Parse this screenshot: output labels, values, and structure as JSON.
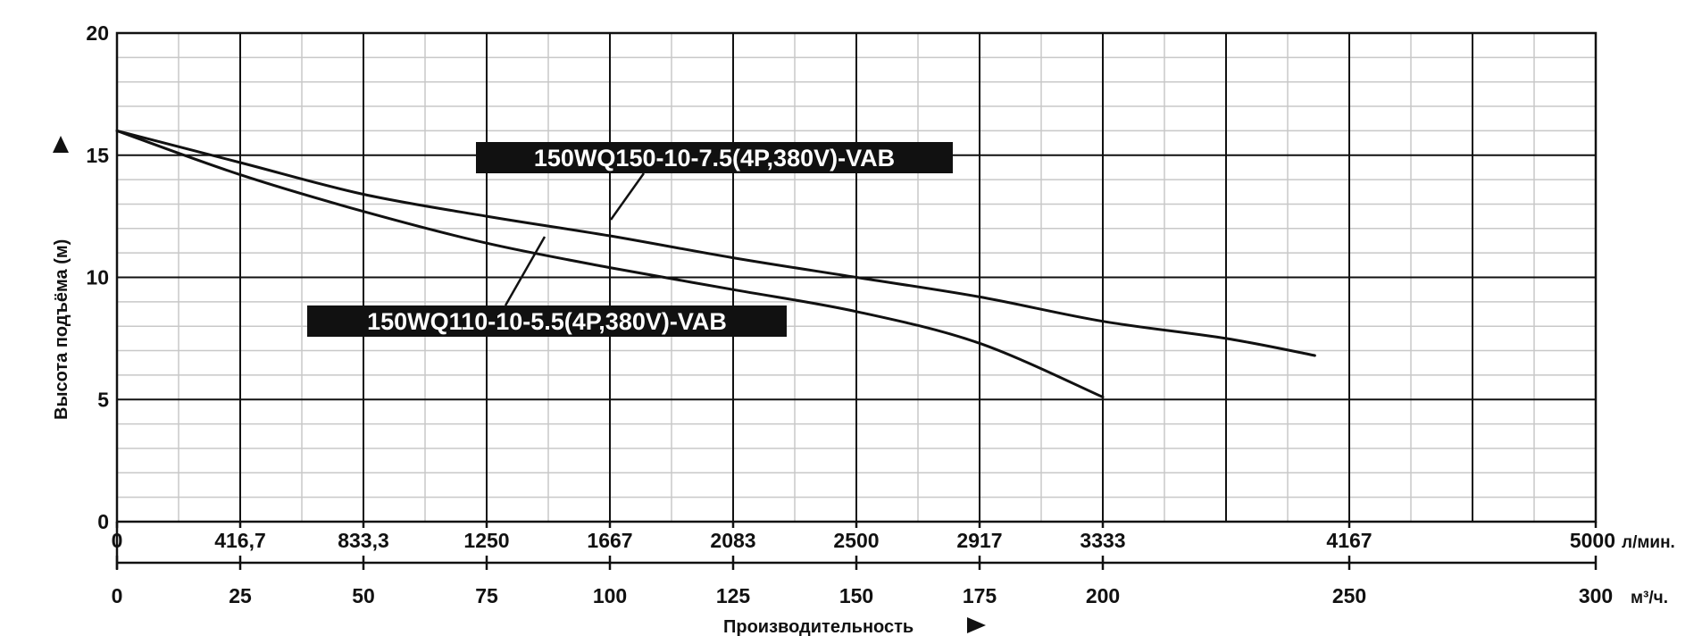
{
  "chart_data": {
    "type": "line",
    "title": "",
    "xlabel": "Производительность",
    "ylabel": "Высота подъёма (м)",
    "xlim": [
      0,
      300
    ],
    "ylim": [
      0,
      20
    ],
    "x_ticks_m3h": [
      "0",
      "25",
      "50",
      "75",
      "100",
      "125",
      "150",
      "175",
      "200",
      "250",
      "300"
    ],
    "x_ticks_lmin": [
      "0",
      "416,7",
      "833,3",
      "1250",
      "1667",
      "2083",
      "2500",
      "2917",
      "3333",
      "4167",
      "5000"
    ],
    "y_ticks": [
      "0",
      "5",
      "10",
      "15",
      "20"
    ],
    "unit_lmin": "л/мин.",
    "unit_m3h": "м³/ч.",
    "grid": true,
    "legend": "inline labels",
    "series": [
      {
        "name": "150WQ150-10-7.5(4P,380V)-VAB",
        "x": [
          0,
          25,
          50,
          75,
          100,
          125,
          150,
          175,
          200,
          225,
          243
        ],
        "y": [
          16,
          14.7,
          13.4,
          12.5,
          11.7,
          10.8,
          10.0,
          9.2,
          8.2,
          7.5,
          6.8
        ]
      },
      {
        "name": "150WQ110-10-5.5(4P,380V)-VAB",
        "x": [
          0,
          25,
          50,
          75,
          100,
          125,
          150,
          175,
          200
        ],
        "y": [
          16,
          14.2,
          12.7,
          11.4,
          10.4,
          9.5,
          8.6,
          7.3,
          5.1
        ]
      }
    ],
    "colors": {
      "line": "#111111",
      "major_grid": "#111111",
      "minor_grid": "#c8c8c8",
      "label_bg": "#111111",
      "label_text": "#ffffff"
    }
  }
}
